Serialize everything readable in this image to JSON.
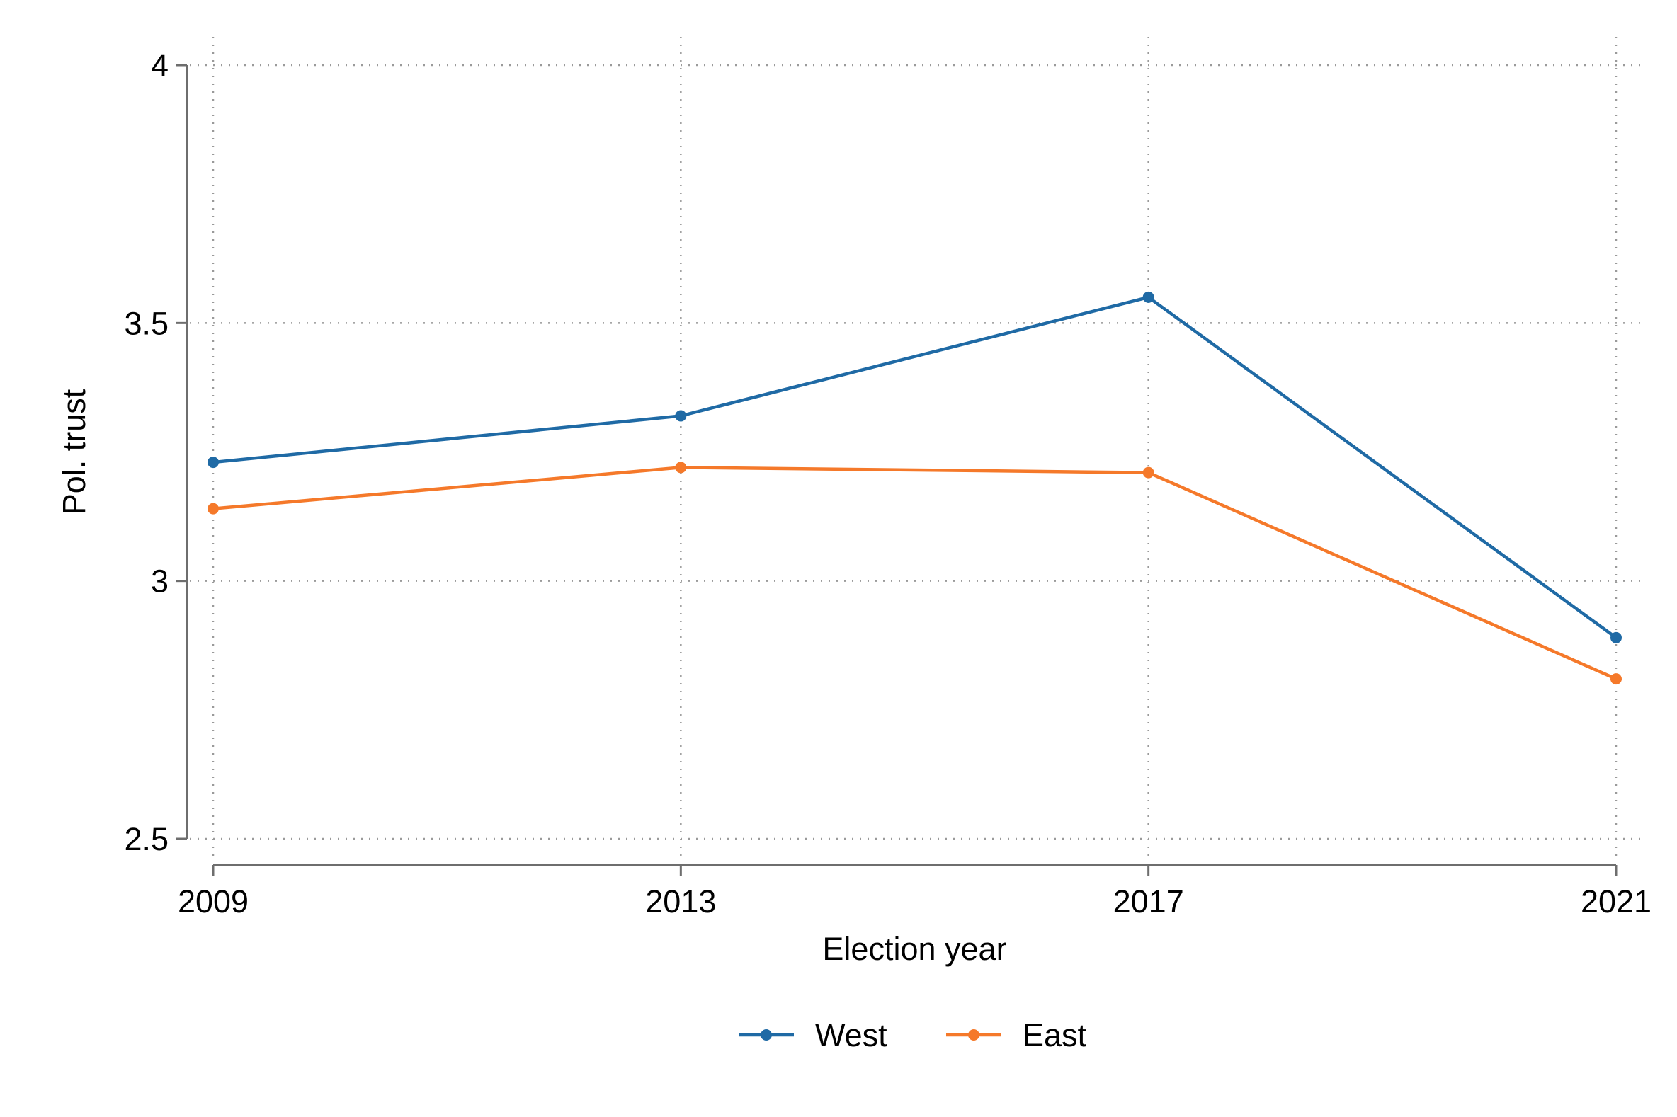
{
  "chart_data": {
    "type": "line",
    "title": "",
    "xlabel": "Election year",
    "ylabel": "Pol. trust",
    "categories": [
      "2009",
      "2013",
      "2017",
      "2021"
    ],
    "x": [
      2009,
      2013,
      2017,
      2021
    ],
    "xlim": [
      2009,
      2021
    ],
    "ylim": [
      2.5,
      4
    ],
    "yticks": [
      2.5,
      3,
      3.5,
      4
    ],
    "ytick_labels": [
      "2.5",
      "3",
      "3.5",
      "4"
    ],
    "grid": true,
    "legend_position": "bottom",
    "series": [
      {
        "name": "West",
        "color": "#1f6aa5",
        "values": [
          3.23,
          3.32,
          3.55,
          2.89
        ]
      },
      {
        "name": "East",
        "color": "#f5792a",
        "values": [
          3.14,
          3.22,
          3.21,
          2.81
        ]
      }
    ]
  }
}
